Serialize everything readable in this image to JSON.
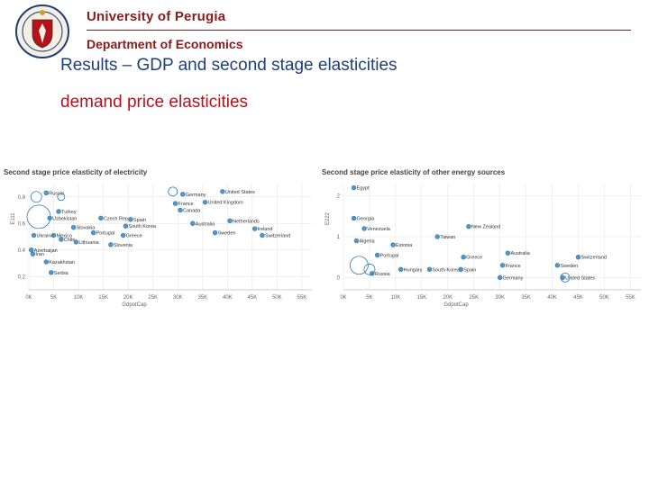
{
  "header": {
    "university": "University of Perugia",
    "department": "Department of Economics"
  },
  "slide": {
    "title": "Results – GDP and second stage elasticities",
    "subtitle": "demand  price elasticities"
  },
  "colors": {
    "header": "#8b1a1a",
    "title": "#1f3f7a",
    "subtitle": "#b5121b",
    "point": "#2b7bb9"
  },
  "logo": {
    "icon": "university-seal-icon"
  },
  "chart_data": [
    {
      "type": "scatter",
      "title": "Second stage price elasticity of electricity",
      "xlabel": "GdpotCap",
      "ylabel": "E111",
      "xlim": [
        0,
        57000
      ],
      "ylim": [
        0.1,
        0.9
      ],
      "xticks": [
        0,
        5000,
        10000,
        15000,
        20000,
        25000,
        30000,
        35000,
        40000,
        45000,
        50000,
        55000
      ],
      "xtick_labels": [
        "0K",
        "5K",
        "10K",
        "15K",
        "20K",
        "25K",
        "30K",
        "35K",
        "40K",
        "45K",
        "50K",
        "55K"
      ],
      "yticks": [
        0.2,
        0.4,
        0.6,
        0.8
      ],
      "ytick_labels": [
        "0.2",
        "0.4",
        "0.6",
        "0.8"
      ],
      "grid": true,
      "points": [
        {
          "x": 3500,
          "y": 0.83,
          "label": "Russia"
        },
        {
          "x": 6000,
          "y": 0.69,
          "label": "Turkey"
        },
        {
          "x": 4200,
          "y": 0.64,
          "label": "Uzbekistan"
        },
        {
          "x": 14500,
          "y": 0.64,
          "label": "Czech Rep."
        },
        {
          "x": 9000,
          "y": 0.57,
          "label": "Slovakia"
        },
        {
          "x": 13000,
          "y": 0.53,
          "label": "Portugal"
        },
        {
          "x": 1000,
          "y": 0.51,
          "label": "Ukraine"
        },
        {
          "x": 5000,
          "y": 0.51,
          "label": "Mexico"
        },
        {
          "x": 6500,
          "y": 0.48,
          "label": "Chile"
        },
        {
          "x": 9500,
          "y": 0.46,
          "label": "Lithuania"
        },
        {
          "x": 500,
          "y": 0.4,
          "label": "Azerbaijan"
        },
        {
          "x": 800,
          "y": 0.37,
          "label": "Iran"
        },
        {
          "x": 3500,
          "y": 0.31,
          "label": "Kazakhstan"
        },
        {
          "x": 4500,
          "y": 0.23,
          "label": "Serbia"
        },
        {
          "x": 20500,
          "y": 0.63,
          "label": "Spain"
        },
        {
          "x": 19500,
          "y": 0.58,
          "label": "South Korea"
        },
        {
          "x": 19000,
          "y": 0.51,
          "label": "Greece"
        },
        {
          "x": 16500,
          "y": 0.44,
          "label": "Slovenia"
        },
        {
          "x": 31000,
          "y": 0.82,
          "label": "Germany"
        },
        {
          "x": 29500,
          "y": 0.75,
          "label": "France"
        },
        {
          "x": 30500,
          "y": 0.7,
          "label": "Canada"
        },
        {
          "x": 35500,
          "y": 0.76,
          "label": "United Kingdom"
        },
        {
          "x": 39000,
          "y": 0.84,
          "label": "United States"
        },
        {
          "x": 40500,
          "y": 0.62,
          "label": "Netherlands"
        },
        {
          "x": 33000,
          "y": 0.6,
          "label": "Australia"
        },
        {
          "x": 37500,
          "y": 0.53,
          "label": "Sweden"
        },
        {
          "x": 45500,
          "y": 0.56,
          "label": "Ireland"
        },
        {
          "x": 47000,
          "y": 0.51,
          "label": "Switzerland"
        }
      ]
    },
    {
      "type": "scatter",
      "title": "Second stage price elasticity of other energy sources",
      "xlabel": "GdpotCap",
      "ylabel": "E222",
      "xlim": [
        0,
        57000
      ],
      "ylim": [
        -0.3,
        2.3
      ],
      "xticks": [
        0,
        5000,
        10000,
        15000,
        20000,
        25000,
        30000,
        35000,
        40000,
        45000,
        50000,
        55000
      ],
      "xtick_labels": [
        "0K",
        "5K",
        "10K",
        "15K",
        "20K",
        "25K",
        "30K",
        "35K",
        "40K",
        "45K",
        "50K",
        "55K"
      ],
      "yticks": [
        0,
        1,
        2
      ],
      "ytick_labels": [
        "0",
        "1",
        "2"
      ],
      "grid": true,
      "points": [
        {
          "x": 2000,
          "y": 2.2,
          "label": "Egypt"
        },
        {
          "x": 2000,
          "y": 1.45,
          "label": "Georgia"
        },
        {
          "x": 4000,
          "y": 1.2,
          "label": "Venezuela"
        },
        {
          "x": 2500,
          "y": 0.9,
          "label": "Algeria"
        },
        {
          "x": 9500,
          "y": 0.8,
          "label": "Estonia"
        },
        {
          "x": 6500,
          "y": 0.55,
          "label": "Portugal"
        },
        {
          "x": 5500,
          "y": 0.1,
          "label": "Russia"
        },
        {
          "x": 11000,
          "y": 0.2,
          "label": "Hungary"
        },
        {
          "x": 16500,
          "y": 0.2,
          "label": "South Korea"
        },
        {
          "x": 18000,
          "y": 1.0,
          "label": "Taiwan"
        },
        {
          "x": 23000,
          "y": 0.5,
          "label": "Greece"
        },
        {
          "x": 22500,
          "y": 0.2,
          "label": "Spain"
        },
        {
          "x": 24000,
          "y": 1.25,
          "label": "New Zealand"
        },
        {
          "x": 31500,
          "y": 0.6,
          "label": "Australia"
        },
        {
          "x": 30500,
          "y": 0.3,
          "label": "France"
        },
        {
          "x": 30000,
          "y": 0.0,
          "label": "Germany"
        },
        {
          "x": 45000,
          "y": 0.5,
          "label": "Switzerland"
        },
        {
          "x": 41000,
          "y": 0.3,
          "label": "Sweden"
        },
        {
          "x": 42000,
          "y": 0.0,
          "label": "United States"
        }
      ]
    }
  ]
}
